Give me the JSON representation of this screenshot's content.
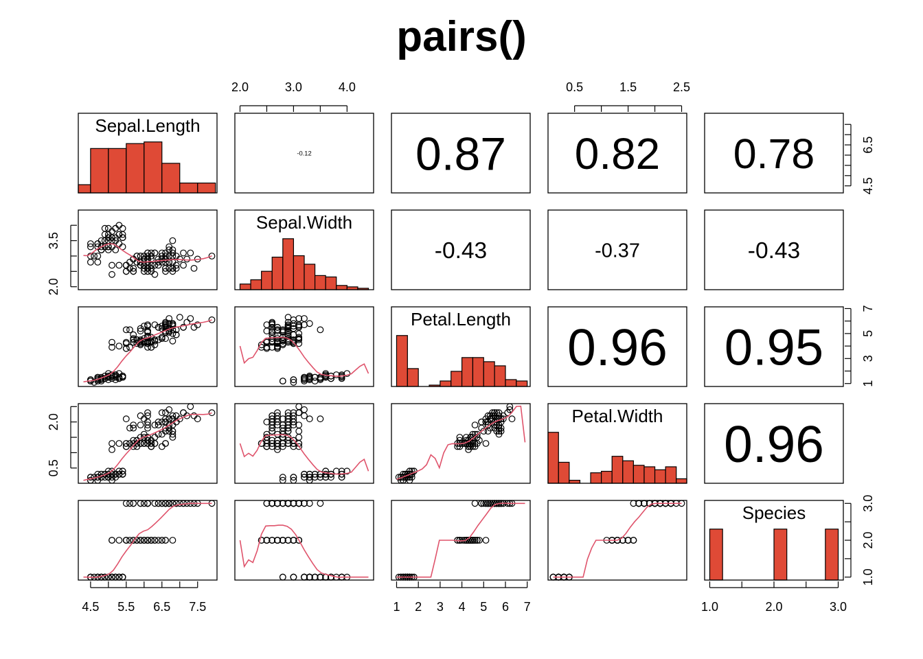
{
  "title": "pairs()",
  "colors": {
    "hist_fill": "#DF4A36",
    "smooth_line": "#DF536B",
    "points": "#000000",
    "panel_border": "#000000"
  },
  "chart_data": {
    "type": "scatter",
    "variables": [
      "Sepal.Length",
      "Sepal.Width",
      "Petal.Length",
      "Petal.Width",
      "Species"
    ],
    "ranges": {
      "Sepal.Length": [
        4.3,
        7.9
      ],
      "Sepal.Width": [
        2.0,
        4.4
      ],
      "Petal.Length": [
        1.0,
        6.9
      ],
      "Petal.Width": [
        0.1,
        2.5
      ],
      "Species": [
        1.0,
        3.0
      ]
    },
    "correlations": [
      {
        "row": 1,
        "col": 2,
        "label": "-0.12"
      },
      {
        "row": 1,
        "col": 3,
        "label": "0.87"
      },
      {
        "row": 1,
        "col": 4,
        "label": "0.82"
      },
      {
        "row": 1,
        "col": 5,
        "label": "0.78"
      },
      {
        "row": 2,
        "col": 3,
        "label": "-0.43"
      },
      {
        "row": 2,
        "col": 4,
        "label": "-0.37"
      },
      {
        "row": 2,
        "col": 5,
        "label": "-0.43"
      },
      {
        "row": 3,
        "col": 4,
        "label": "0.96"
      },
      {
        "row": 3,
        "col": 5,
        "label": "0.95"
      },
      {
        "row": 4,
        "col": 5,
        "label": "0.96"
      }
    ],
    "histograms": {
      "Sepal.Length": {
        "breaks": [
          4.0,
          4.5,
          5.0,
          5.5,
          6.0,
          6.5,
          7.0,
          7.5,
          8.0
        ],
        "counts": [
          5,
          27,
          27,
          30,
          31,
          18,
          6,
          6
        ]
      },
      "Sepal.Width": {
        "breaks": [
          2.0,
          2.2,
          2.4,
          2.6,
          2.8,
          3.0,
          3.2,
          3.4,
          3.6,
          3.8,
          4.0,
          4.2,
          4.4
        ],
        "counts": [
          4,
          7,
          13,
          23,
          36,
          24,
          18,
          10,
          9,
          3,
          2,
          1
        ]
      },
      "Petal.Length": {
        "breaks": [
          1.0,
          1.5,
          2.0,
          2.5,
          3.0,
          3.5,
          4.0,
          4.5,
          5.0,
          5.5,
          6.0,
          6.5,
          7.0
        ],
        "counts": [
          37,
          13,
          0,
          1,
          4,
          11,
          21,
          21,
          18,
          15,
          5,
          4
        ]
      },
      "Petal.Width": {
        "breaks": [
          0.0,
          0.2,
          0.4,
          0.6,
          0.8,
          1.0,
          1.2,
          1.4,
          1.6,
          1.8,
          2.0,
          2.2,
          2.4,
          2.6
        ],
        "counts": [
          34,
          14,
          2,
          0,
          7,
          8,
          18,
          15,
          12,
          11,
          9,
          11,
          3
        ]
      },
      "Species": {
        "breaks": [
          1.0,
          1.2,
          1.4,
          1.6,
          1.8,
          2.0,
          2.2,
          2.4,
          2.6,
          2.8,
          3.0
        ],
        "counts": [
          50,
          0,
          0,
          0,
          0,
          50,
          0,
          0,
          0,
          50
        ]
      }
    },
    "axes": {
      "top": [
        {
          "col": 2,
          "ticks": [
            2.0,
            2.5,
            3.0,
            3.5,
            4.0
          ],
          "labels": [
            "2.0",
            "3.0",
            "4.0"
          ]
        },
        {
          "col": 4,
          "ticks": [
            0.5,
            1.0,
            1.5,
            2.0,
            2.5
          ],
          "labels": [
            "0.5",
            "1.5",
            "2.5"
          ]
        }
      ],
      "bottom": [
        {
          "col": 1,
          "ticks": [
            4.5,
            5.0,
            5.5,
            6.0,
            6.5,
            7.0,
            7.5
          ],
          "labels": [
            "4.5",
            "5.5",
            "6.5",
            "7.5"
          ]
        },
        {
          "col": 3,
          "ticks": [
            1,
            2,
            3,
            4,
            5,
            6,
            7
          ],
          "labels": [
            "1",
            "2",
            "3",
            "4",
            "5",
            "6",
            "7"
          ]
        },
        {
          "col": 5,
          "ticks": [
            1.0,
            1.5,
            2.0,
            2.5,
            3.0
          ],
          "labels": [
            "1.0",
            "2.0",
            "3.0"
          ]
        }
      ],
      "left": [
        {
          "row": 2,
          "ticks": [
            2.0,
            2.5,
            3.0,
            3.5,
            4.0
          ],
          "labels": [
            "2.0",
            "3.5"
          ]
        },
        {
          "row": 4,
          "ticks": [
            0.5,
            1.0,
            1.5,
            2.0,
            2.5
          ],
          "labels": [
            "0.5",
            "2.0"
          ]
        }
      ],
      "right": [
        {
          "row": 1,
          "ticks": [
            4.5,
            5.0,
            5.5,
            6.0,
            6.5,
            7.0,
            7.5
          ],
          "labels": [
            "4.5",
            "6.5"
          ]
        },
        {
          "row": 3,
          "ticks": [
            1,
            2,
            3,
            4,
            5,
            6,
            7
          ],
          "labels": [
            "1",
            "3",
            "5",
            "7"
          ]
        },
        {
          "row": 5,
          "ticks": [
            1.0,
            1.5,
            2.0,
            2.5,
            3.0
          ],
          "labels": [
            "1.0",
            "2.0",
            "3.0"
          ]
        }
      ]
    },
    "smooth_line": true,
    "grid": false
  }
}
